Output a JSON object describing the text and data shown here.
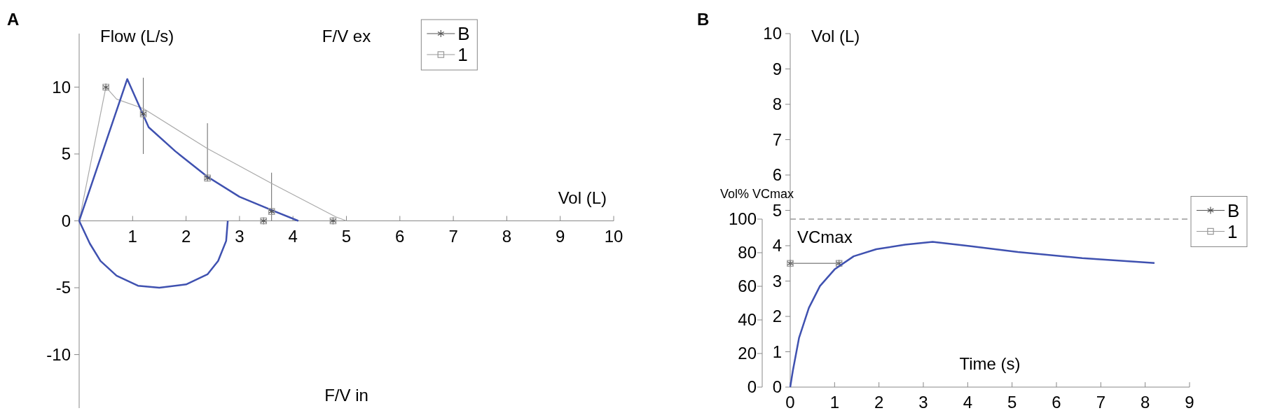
{
  "chart_data": [
    {
      "type": "line",
      "title": "A",
      "xlabel": "Vol (L)",
      "ylabel": "Flow (L/s)",
      "annotations": [
        "F/V ex",
        "F/V in"
      ],
      "xlim": [
        0,
        10
      ],
      "xticks": [
        {
          "value": 0,
          "label": null
        },
        1,
        2,
        3,
        4,
        5,
        6,
        7,
        8,
        9,
        10
      ],
      "ylim": [
        -14,
        14
      ],
      "yticks": [
        -10,
        -5,
        0,
        5,
        10
      ],
      "legend": "top right",
      "grid": false,
      "series": [
        {
          "color": "#aaaaaa",
          "marker": "none",
          "x": [
            0,
            0.5,
            0.7,
            1.2,
            2.4,
            3.6,
            4.8,
            5
          ],
          "values": [
            0,
            10,
            9.1,
            8.4,
            5.4,
            2.8,
            0.3,
            0
          ],
          "errors": [
            null,
            null,
            null,
            [
              5,
              10.7
            ],
            [
              3.2,
              7.3
            ],
            [
              0,
              3.6
            ],
            null,
            null
          ]
        },
        {
          "color": "#3f51b0",
          "marker": "none",
          "x": [
            0,
            0.9,
            1.3,
            1.8,
            2.4,
            3,
            3.6,
            4.1
          ],
          "values": [
            0,
            10.6,
            7,
            5.2,
            3.3,
            1.8,
            0.8,
            0
          ]
        },
        {
          "color": "#3f51b0",
          "marker": "none",
          "x": [
            0,
            0.2,
            0.4,
            0.7,
            1.1,
            1.5,
            2,
            2.4,
            2.6,
            2.75,
            2.78
          ],
          "values": [
            0,
            -1.7,
            -3,
            -4.1,
            -4.85,
            -5,
            -4.75,
            -4,
            -3,
            -1.5,
            0
          ]
        },
        {
          "type": "scatter",
          "name": "B",
          "color": "#555555",
          "marker": "cross",
          "x": [
            0.5,
            1.2,
            2.4,
            3.45,
            3.6,
            4.75
          ],
          "values": [
            10,
            8,
            3.2,
            0,
            0.7,
            0
          ]
        },
        {
          "type": "scatter",
          "name": "1",
          "color": "#999999",
          "marker": "square",
          "x": [
            0.5,
            1.2,
            2.4,
            3.45,
            3.6,
            4.75
          ],
          "values": [
            10,
            8,
            3.2,
            0,
            0.7,
            0
          ]
        }
      ]
    },
    {
      "type": "line",
      "title": "B",
      "xlabel": "Time (s)",
      "ylabel": "Vol (L)",
      "y2label": "Vol% VCmax",
      "xlim": [
        0,
        9
      ],
      "xticks": [
        0,
        1,
        2,
        3,
        4,
        5,
        6,
        7,
        8,
        9
      ],
      "ylim": [
        0,
        10
      ],
      "yticks": [
        0,
        1,
        2,
        3,
        4,
        5,
        6,
        7,
        8,
        9,
        10
      ],
      "y2lim": [
        0,
        100
      ],
      "y2ticks": [
        0,
        20,
        40,
        60,
        80,
        100
      ],
      "legend": "right",
      "grid": false,
      "ref_lines": [
        {
          "axis": "y2",
          "value": 100,
          "label": "VCmax",
          "color": "#999999",
          "line_style": "dashed"
        }
      ],
      "series": [
        {
          "name": "B",
          "color": "#555555",
          "marker": "cross",
          "x": [
            0,
            1.1
          ],
          "values": [
            3.5,
            3.5
          ]
        },
        {
          "name": "1",
          "color": "#999999",
          "marker": "square",
          "x": [
            0,
            1.1
          ],
          "values": [
            3.5,
            3.5
          ]
        },
        {
          "color": "#3f51b0",
          "marker": "none",
          "x": [
            0,
            0.06,
            0.2,
            0.42,
            0.67,
            1,
            1.43,
            1.94,
            2.59,
            3.21,
            4.04,
            5.13,
            6.58,
            8.21
          ],
          "values": [
            0,
            0.47,
            1.4,
            2.24,
            2.86,
            3.33,
            3.7,
            3.9,
            4.03,
            4.11,
            3.99,
            3.82,
            3.65,
            3.51
          ]
        }
      ]
    }
  ]
}
